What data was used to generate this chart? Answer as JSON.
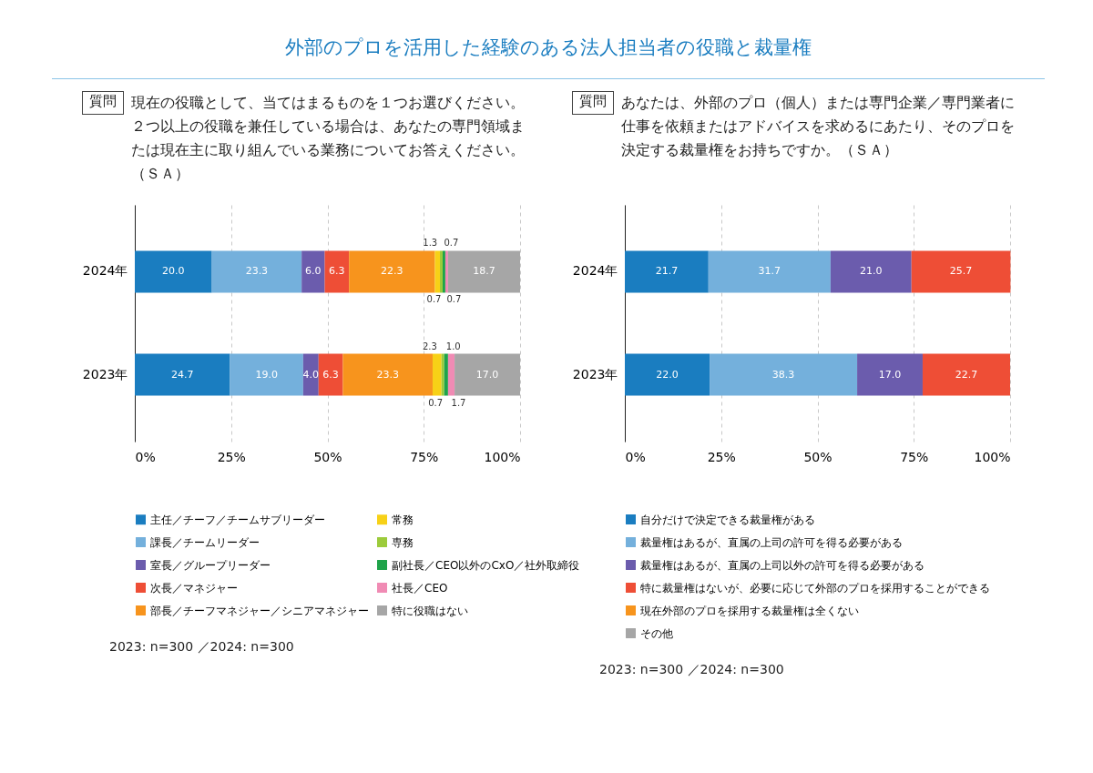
{
  "chart_data": [
    {
      "type": "bar",
      "orientation": "horizontal",
      "stacked": true,
      "title": "外部のプロを活用した経験のある法人担当者の役職と裁量権",
      "subtitle": "現在の役職として、当てはまるものを１つお選びください。２つ以上の役職を兼任している場合は、あなたの専門領域または現在主に取り組んでいる業務についてお答えください。（ＳＡ）",
      "annotations": [
        "質問",
        "2023: n=300 ／2024: n=300"
      ],
      "categories": [
        "2024年",
        "2023年"
      ],
      "series": [
        {
          "name": "主任／チーフ／チームサブリーダー",
          "color": "#1a7dc0",
          "values": [
            20.0,
            24.7
          ],
          "value_labels": [
            "20.0",
            "24.7"
          ]
        },
        {
          "name": "課長／チームリーダー",
          "color": "#74b0dc",
          "values": [
            23.3,
            19.0
          ],
          "value_labels": [
            "23.3",
            "19.0"
          ]
        },
        {
          "name": "室長／グループリーダー",
          "color": "#6b5cad",
          "values": [
            6.0,
            4.0
          ],
          "value_labels": [
            "6.0",
            "4.0"
          ]
        },
        {
          "name": "次長／マネジャー",
          "color": "#ee4e36",
          "values": [
            6.3,
            6.3
          ],
          "value_labels": [
            "6.3",
            "6.3"
          ]
        },
        {
          "name": "部長／チーフマネジャー／シニアマネジャー",
          "color": "#f7941d",
          "values": [
            22.3,
            23.3
          ],
          "value_labels": [
            "22.3",
            "23.3"
          ]
        },
        {
          "name": "常務",
          "color": "#f7d117",
          "values": [
            1.3,
            2.3
          ],
          "value_labels": [
            "1.3",
            "2.3"
          ]
        },
        {
          "name": "専務",
          "color": "#9ccb3b",
          "values": [
            0.7,
            0.7
          ],
          "value_labels": [
            "0.7",
            "0.7"
          ]
        },
        {
          "name": "副社長／CEO以外のCxO／社外取締役",
          "color": "#1fa34a",
          "values": [
            0.7,
            1.0
          ],
          "value_labels": [
            "0.7",
            "1.0"
          ]
        },
        {
          "name": "社長／CEO",
          "color": "#f08bb4",
          "values": [
            0.7,
            1.7
          ],
          "value_labels": [
            "0.7",
            "1.7"
          ]
        },
        {
          "name": "特に役職はない",
          "color": "#a6a6a6",
          "values": [
            18.7,
            17.0
          ],
          "value_labels": [
            "18.7",
            "17.0"
          ]
        }
      ],
      "xlim": [
        0,
        100
      ],
      "xticks": [
        {
          "value": 0,
          "label": "0%"
        },
        {
          "value": 25,
          "label": "25%"
        },
        {
          "value": 50,
          "label": "50%"
        },
        {
          "value": 75,
          "label": "75%"
        },
        {
          "value": 100,
          "label": "100%"
        }
      ],
      "grid": "x",
      "legend": "bottom"
    },
    {
      "type": "bar",
      "orientation": "horizontal",
      "stacked": true,
      "subtitle": "あなたは、外部のプロ（個人）または専門企業／専門業者に仕事を依頼またはアドバイスを求めるにあたり、そのプロを決定する裁量権をお持ちですか。（ＳＡ）",
      "annotations": [
        "質問",
        "2023: n=300 ／2024: n=300"
      ],
      "categories": [
        "2024年",
        "2023年"
      ],
      "series": [
        {
          "name": "自分だけで決定できる裁量権がある",
          "color": "#1a7dc0",
          "values": [
            21.7,
            22.0
          ],
          "value_labels": [
            "21.7",
            "22.0"
          ]
        },
        {
          "name": "裁量権はあるが、直属の上司の許可を得る必要がある",
          "color": "#74b0dc",
          "values": [
            31.7,
            38.3
          ],
          "value_labels": [
            "31.7",
            "38.3"
          ]
        },
        {
          "name": "裁量権はあるが、直属の上司以外の許可を得る必要がある",
          "color": "#6b5cad",
          "values": [
            21.0,
            17.0
          ],
          "value_labels": [
            "21.0",
            "17.0"
          ]
        },
        {
          "name": "特に裁量権はないが、必要に応じて外部のプロを採用することができる",
          "color": "#ee4e36",
          "values": [
            25.7,
            22.7
          ],
          "value_labels": [
            "25.7",
            "22.7"
          ]
        },
        {
          "name": "現在外部のプロを採用する裁量権は全くない",
          "color": "#f7941d",
          "values": [
            null,
            null
          ]
        },
        {
          "name": "その他",
          "color": "#a6a6a6",
          "values": [
            null,
            null
          ]
        }
      ],
      "xlim": [
        0,
        100
      ],
      "xticks": [
        {
          "value": 0,
          "label": "0%"
        },
        {
          "value": 25,
          "label": "25%"
        },
        {
          "value": 50,
          "label": "50%"
        },
        {
          "value": 75,
          "label": "75%"
        },
        {
          "value": 100,
          "label": "100%"
        }
      ],
      "grid": "x",
      "legend": "bottom"
    }
  ]
}
